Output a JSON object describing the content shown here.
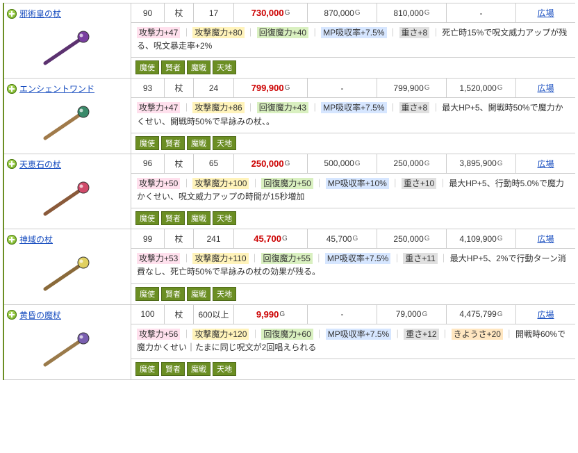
{
  "link_label": "広場",
  "jobs": [
    "魔使",
    "賢者",
    "魔戦",
    "天地"
  ],
  "items": [
    {
      "name": "邪術皇の杖",
      "lvl": "90",
      "type": "杖",
      "count": "17",
      "price_main": "730,000",
      "p2": "870,000",
      "p3": "810,000",
      "p4": "-",
      "icon_color1": "#7a3fa0",
      "icon_color2": "#5c3270",
      "stats": [
        {
          "cls": "tag-pink",
          "text": "攻撃力+47"
        },
        {
          "cls": "tag-yellow",
          "text": "攻撃魔力+80"
        },
        {
          "cls": "tag-green",
          "text": "回復魔力+40"
        },
        {
          "cls": "tag-blue",
          "text": "MP吸収率+7.5%"
        },
        {
          "cls": "tag-gray",
          "text": "重さ+8"
        }
      ],
      "extra": "死亡時15%で呪文威力アップが残る、呪文暴走率+2%"
    },
    {
      "name": "エンシェントワンド",
      "lvl": "93",
      "type": "杖",
      "count": "24",
      "price_main": "799,900",
      "p2": "-",
      "p3": "799,900",
      "p4": "1,520,000",
      "icon_color1": "#3a8a6a",
      "icon_color2": "#a07a4a",
      "stats": [
        {
          "cls": "tag-pink",
          "text": "攻撃力+47"
        },
        {
          "cls": "tag-yellow",
          "text": "攻撃魔力+86"
        },
        {
          "cls": "tag-green",
          "text": "回復魔力+43"
        },
        {
          "cls": "tag-blue",
          "text": "MP吸収率+7.5%"
        },
        {
          "cls": "tag-gray",
          "text": "重さ+8"
        }
      ],
      "extra": "最大HP+5、開戦時50%で魔力かくせい、開戦時50%で早詠みの杖、。"
    },
    {
      "name": "天恵石の杖",
      "lvl": "96",
      "type": "杖",
      "count": "65",
      "price_main": "250,000",
      "p2": "500,000",
      "p3": "250,000",
      "p4": "3,895,900",
      "icon_color1": "#d04a6a",
      "icon_color2": "#8a5a3a",
      "stats": [
        {
          "cls": "tag-pink",
          "text": "攻撃力+50"
        },
        {
          "cls": "tag-yellow",
          "text": "攻撃魔力+100"
        },
        {
          "cls": "tag-green",
          "text": "回復魔力+50"
        },
        {
          "cls": "tag-blue",
          "text": "MP吸収率+10%"
        },
        {
          "cls": "tag-gray",
          "text": "重さ+10"
        }
      ],
      "extra": "最大HP+5、行動時5.0%で魔力かくせい、呪文威力アップの時間が15秒増加"
    },
    {
      "name": "神域の杖",
      "lvl": "99",
      "type": "杖",
      "count": "241",
      "price_main": "45,700",
      "p2": "45,700",
      "p3": "250,000",
      "p4": "4,109,900",
      "icon_color1": "#e0d060",
      "icon_color2": "#8a6a3a",
      "stats": [
        {
          "cls": "tag-pink",
          "text": "攻撃力+53"
        },
        {
          "cls": "tag-yellow",
          "text": "攻撃魔力+110"
        },
        {
          "cls": "tag-green",
          "text": "回復魔力+55"
        },
        {
          "cls": "tag-blue",
          "text": "MP吸収率+7.5%"
        },
        {
          "cls": "tag-gray",
          "text": "重さ+11"
        }
      ],
      "extra": "最大HP+5、2%で行動ターン消費なし、死亡時50%で早詠みの杖の効果が残る。"
    },
    {
      "name": "黄昏の魔杖",
      "lvl": "100",
      "type": "杖",
      "count": "600以上",
      "price_main": "9,990",
      "p2": "-",
      "p3": "79,000",
      "p4": "4,475,799",
      "icon_color1": "#7a5fb0",
      "icon_color2": "#9a7a4a",
      "stats": [
        {
          "cls": "tag-pink",
          "text": "攻撃力+56"
        },
        {
          "cls": "tag-yellow",
          "text": "攻撃魔力+120"
        },
        {
          "cls": "tag-green",
          "text": "回復魔力+60"
        },
        {
          "cls": "tag-blue",
          "text": "MP吸収率+7.5%"
        },
        {
          "cls": "tag-gray",
          "text": "重さ+12"
        },
        {
          "cls": "tag-orange",
          "text": "きようさ+20"
        }
      ],
      "extra": "開戦時60%で魔力かくせい｜たまに同じ呪文が2回唱えられる"
    }
  ]
}
